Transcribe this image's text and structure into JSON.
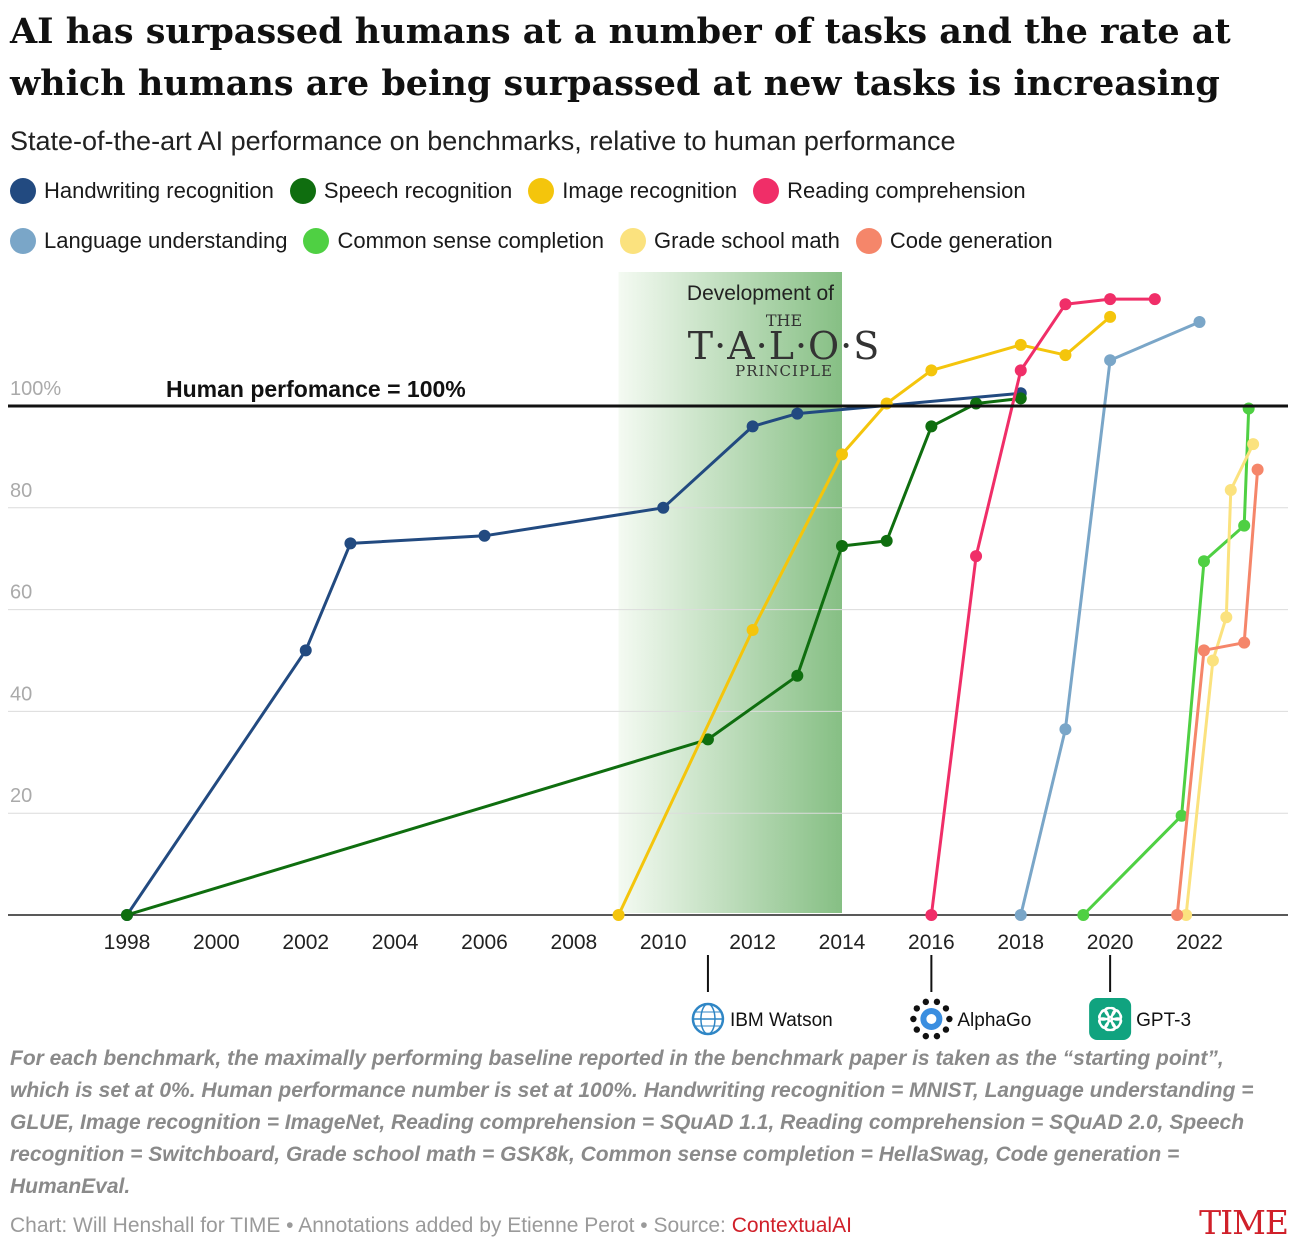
{
  "title": "AI has surpassed humans at a number of tasks and the rate at which humans are being surpassed at new tasks is increasing",
  "subtitle": "State-of-the-art AI performance on benchmarks, relative to human performance",
  "legend": [
    [
      {
        "label": "Handwriting recognition",
        "color": "#224a80"
      },
      {
        "label": "Speech recognition",
        "color": "#0f6e0f"
      },
      {
        "label": "Image recognition",
        "color": "#f4c50c"
      },
      {
        "label": "Reading comprehension",
        "color": "#f02e68"
      }
    ],
    [
      {
        "label": "Language understanding",
        "color": "#7aa6c8"
      },
      {
        "label": "Common sense completion",
        "color": "#4fd043"
      },
      {
        "label": "Grade school math",
        "color": "#fbe27e"
      },
      {
        "label": "Code generation",
        "color": "#f5866a"
      }
    ]
  ],
  "chart_data": {
    "type": "line",
    "title": "AI has surpassed humans at a number of tasks and the rate at which humans are being surpassed at new tasks is increasing",
    "subtitle": "State-of-the-art AI performance on benchmarks, relative to human performance",
    "xlabel": "",
    "ylabel": "",
    "xlim": [
      1998,
      2023.6
    ],
    "ylim": [
      0,
      118
    ],
    "x_ticks": [
      1998,
      2000,
      2002,
      2004,
      2006,
      2008,
      2010,
      2012,
      2014,
      2016,
      2018,
      2020,
      2022
    ],
    "y_ticks": [
      {
        "value": 20,
        "label": "20"
      },
      {
        "value": 40,
        "label": "40"
      },
      {
        "value": 60,
        "label": "60"
      },
      {
        "value": 80,
        "label": "80"
      },
      {
        "value": 100,
        "label": "100%"
      }
    ],
    "grid": true,
    "legend_position": "top",
    "reference_line": {
      "value": 100,
      "label": "Human perfomance = 100%"
    },
    "highlight_band": {
      "from": 2009,
      "to": 2014,
      "label": "Development of",
      "logo_line1": "THE",
      "logo_line2": "T·A·L·O·S",
      "logo_line3": "PRINCIPLE"
    },
    "annotations": [
      {
        "x": 2011,
        "label": "IBM Watson",
        "icon": "ibm-watson-icon"
      },
      {
        "x": 2016,
        "label": "AlphaGo",
        "icon": "alphago-icon"
      },
      {
        "x": 2020,
        "label": "GPT-3",
        "icon": "gpt3-icon"
      }
    ],
    "series": [
      {
        "name": "Handwriting recognition",
        "color": "#224a80",
        "points": [
          [
            1998,
            0
          ],
          [
            2002,
            52
          ],
          [
            2003,
            73
          ],
          [
            2006,
            74.5
          ],
          [
            2010,
            80
          ],
          [
            2012,
            96
          ],
          [
            2013,
            98.5
          ],
          [
            2018,
            102.5
          ]
        ]
      },
      {
        "name": "Speech recognition",
        "color": "#0f6e0f",
        "points": [
          [
            1998,
            0
          ],
          [
            2011,
            34.5
          ],
          [
            2013,
            47
          ],
          [
            2014,
            72.5
          ],
          [
            2015,
            73.5
          ],
          [
            2016,
            96
          ],
          [
            2017,
            100.5
          ],
          [
            2018,
            101.5
          ]
        ]
      },
      {
        "name": "Image recognition",
        "color": "#f4c50c",
        "points": [
          [
            2009,
            0
          ],
          [
            2012,
            56
          ],
          [
            2014,
            90.5
          ],
          [
            2015,
            100.5
          ],
          [
            2016,
            107
          ],
          [
            2018,
            112
          ],
          [
            2019,
            110
          ],
          [
            2020,
            117.5
          ]
        ]
      },
      {
        "name": "Reading comprehension",
        "color": "#f02e68",
        "points": [
          [
            2016,
            0
          ],
          [
            2017,
            70.5
          ],
          [
            2018,
            107
          ],
          [
            2019,
            120
          ],
          [
            2020,
            121
          ],
          [
            2021,
            121
          ]
        ]
      },
      {
        "name": "Language understanding",
        "color": "#7aa6c8",
        "points": [
          [
            2018,
            0
          ],
          [
            2019,
            36.5
          ],
          [
            2020,
            109
          ],
          [
            2022,
            116.5
          ]
        ]
      },
      {
        "name": "Common sense completion",
        "color": "#4fd043",
        "points": [
          [
            2019.4,
            0
          ],
          [
            2021.6,
            19.5
          ],
          [
            2022.1,
            69.5
          ],
          [
            2023,
            76.5
          ],
          [
            2023.1,
            99.5
          ]
        ]
      },
      {
        "name": "Grade school math",
        "color": "#fbe27e",
        "points": [
          [
            2021.7,
            0
          ],
          [
            2022.3,
            50
          ],
          [
            2022.6,
            58.5
          ],
          [
            2022.7,
            83.5
          ],
          [
            2023.2,
            92.5
          ]
        ]
      },
      {
        "name": "Code generation",
        "color": "#f5866a",
        "points": [
          [
            2021.5,
            0
          ],
          [
            2022.1,
            52
          ],
          [
            2023,
            53.5
          ],
          [
            2023.3,
            87.5
          ]
        ]
      }
    ]
  },
  "footnote": "For each benchmark, the maximally performing baseline reported in the benchmark paper is taken as the “starting point”, which is set at 0%. Human performance number is set at 100%. Handwriting recognition = MNIST, Language understanding = GLUE, Image recognition = ImageNet, Reading comprehension = SQuAD 1.1, Reading comprehension = SQuAD 2.0, Speech recognition = Switchboard, Grade school math = GSK8k, Common sense completion = HellaSwag, Code generation = HumanEval.",
  "credit": {
    "text": "Chart: Will Henshall for TIME • Annotations added by Etienne Perot • Source: ",
    "source": "ContextualAI"
  },
  "brand": "TIME"
}
